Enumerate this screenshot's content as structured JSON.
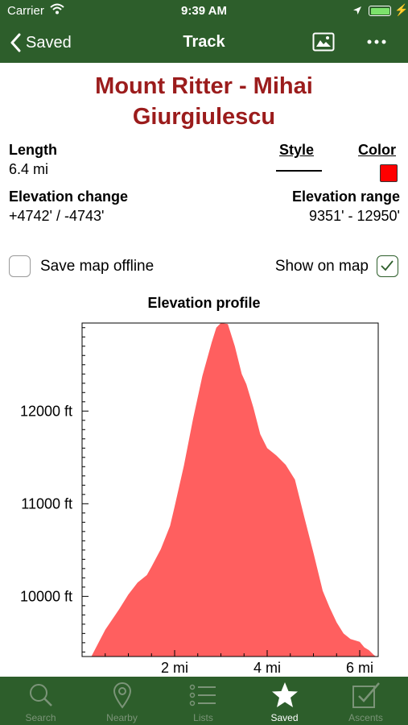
{
  "status": {
    "carrier": "Carrier",
    "time": "9:39 AM"
  },
  "nav": {
    "back_label": "Saved",
    "title": "Track"
  },
  "track": {
    "name_line1": "Mount Ritter - Mihai",
    "name_line2": "Giurgiulescu"
  },
  "stats": {
    "length_label": "Length",
    "length_value": "6.4 mi",
    "style_label": "Style",
    "color_label": "Color",
    "elev_change_label": "Elevation change",
    "elev_change_value": "+4742' / -4743'",
    "elev_range_label": "Elevation range",
    "elev_range_value": "9351' - 12950'"
  },
  "options": {
    "save_offline_label": "Save map offline",
    "save_offline_checked": false,
    "show_on_map_label": "Show on map",
    "show_on_map_checked": true
  },
  "colors": {
    "brand": "#2d5e2b",
    "title": "#9b1c1c",
    "track": "#ff0000",
    "profile_fill": "#ff5f5f"
  },
  "chart_data": {
    "type": "area",
    "title": "Elevation profile",
    "xlim": [
      0,
      6.4
    ],
    "ylim": [
      9351,
      12950
    ],
    "x_ticks": [
      {
        "value": 2,
        "label": "2 mi"
      },
      {
        "value": 4,
        "label": "4 mi"
      },
      {
        "value": 6,
        "label": "6 mi"
      }
    ],
    "y_ticks": [
      {
        "value": 10000,
        "label": "10000 ft"
      },
      {
        "value": 11000,
        "label": "11000 ft"
      },
      {
        "value": 12000,
        "label": "12000 ft"
      }
    ],
    "x": [
      0.2,
      0.5,
      0.8,
      1.0,
      1.2,
      1.4,
      1.5,
      1.7,
      1.9,
      2.0,
      2.2,
      2.4,
      2.6,
      2.8,
      2.9,
      3.0,
      3.15,
      3.3,
      3.45,
      3.55,
      3.7,
      3.85,
      4.0,
      4.2,
      4.4,
      4.6,
      4.8,
      5.0,
      5.2,
      5.35,
      5.5,
      5.65,
      5.8,
      6.0,
      6.1,
      6.2,
      6.3,
      6.35
    ],
    "y": [
      9351,
      9640,
      9860,
      10020,
      10150,
      10230,
      10320,
      10510,
      10760,
      10970,
      11410,
      11920,
      12380,
      12740,
      12900,
      12950,
      12940,
      12700,
      12400,
      12290,
      12040,
      11750,
      11600,
      11520,
      11420,
      11260,
      10860,
      10470,
      10060,
      9880,
      9720,
      9600,
      9540,
      9510,
      9450,
      9420,
      9370,
      9351
    ]
  },
  "tabs": [
    {
      "label": "Search",
      "icon": "magnifier-icon"
    },
    {
      "label": "Nearby",
      "icon": "map-pin-icon"
    },
    {
      "label": "Lists",
      "icon": "list-icon"
    },
    {
      "label": "Saved",
      "icon": "star-icon"
    },
    {
      "label": "Ascents",
      "icon": "checkbox-icon"
    }
  ]
}
